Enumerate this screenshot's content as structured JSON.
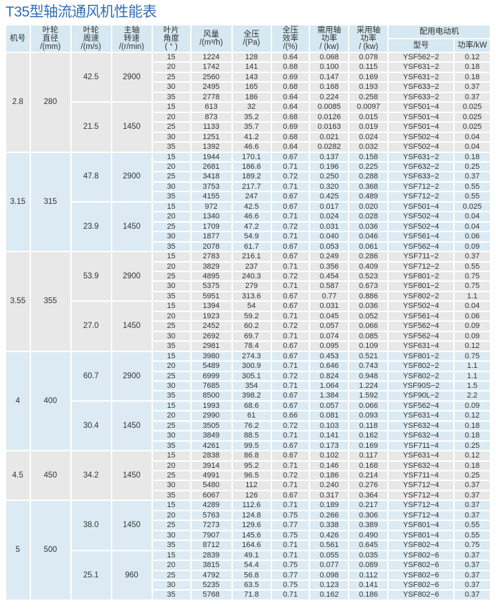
{
  "title": "T35型轴流通风机性能表",
  "headers": {
    "machine_no": "机号",
    "impeller_diameter": [
      "叶轮",
      "直径",
      "/(mm)"
    ],
    "impeller_speed": [
      "叶轮",
      "周速",
      "/(m/s)"
    ],
    "shaft_speed": [
      "主轴",
      "转速",
      "/(r/min)"
    ],
    "blade_angle": [
      "叶片",
      "角度",
      "( ° )"
    ],
    "airflow": [
      "风量",
      "/(m³/h)"
    ],
    "total_pressure": [
      "全压",
      "/(Pa)"
    ],
    "efficiency": [
      "全压",
      "效率",
      "/(%)"
    ],
    "required_power": [
      "需用轴",
      "功率",
      "/ (kw)"
    ],
    "adopted_power": [
      "采用轴",
      "功率",
      "/ (kw)"
    ],
    "motor": "配用电动机",
    "motor_model": "型号",
    "motor_power": "功率/kW"
  },
  "colors": {
    "title": "#2f6db3",
    "header_bg": "#d6e8f1",
    "grey_group": "#e8e8e8",
    "blue_group": "#dcebf3"
  },
  "groups": [
    {
      "machine": "2.8",
      "diameter": "280",
      "subgroups": [
        {
          "speed": "42.5",
          "rpm": "2900",
          "rows": [
            [
              "15",
              "1224",
              "128",
              "0.64",
              "0.068",
              "0.078",
              "YSF562−2",
              "0.12"
            ],
            [
              "20",
              "1742",
              "141",
              "0.68",
              "0.100",
              "0.115",
              "YSF631−2",
              "0.18"
            ],
            [
              "25",
              "2560",
              "143",
              "0.69",
              "0.147",
              "0.169",
              "YSF631−2",
              "0.18"
            ],
            [
              "30",
              "2495",
              "165",
              "0.68",
              "0.168",
              "0.193",
              "YSF633−2",
              "0.37"
            ],
            [
              "35",
              "2778",
              "186",
              "0.64",
              "0.224",
              "0.258",
              "YSF633−2",
              "0.37"
            ]
          ]
        },
        {
          "speed": "21.5",
          "rpm": "1450",
          "rows": [
            [
              "15",
              "613",
              "32",
              "0.64",
              "0.0085",
              "0.0097",
              "YSF501−4",
              "0.025"
            ],
            [
              "20",
              "873",
              "35.2",
              "0.68",
              "0.0126",
              "0.015",
              "YSF501−4",
              "0.025"
            ],
            [
              "25",
              "1133",
              "35.7",
              "0.69",
              "0.0163",
              "0.019",
              "YSF501−4",
              "0.025"
            ],
            [
              "30",
              "1251",
              "41.2",
              "0.68",
              "0.021",
              "0.024",
              "YSF502−4",
              "0.04"
            ],
            [
              "35",
              "1392",
              "46.6",
              "0.64",
              "0.0282",
              "0.032",
              "YSF502−4",
              "0.04"
            ]
          ]
        }
      ]
    },
    {
      "machine": "3.15",
      "diameter": "315",
      "subgroups": [
        {
          "speed": "47.8",
          "rpm": "2900",
          "rows": [
            [
              "15",
              "1944",
              "170.1",
              "0.67",
              "0.137",
              "0.158",
              "YSF631−2",
              "0.18"
            ],
            [
              "20",
              "2681",
              "186.6",
              "0.71",
              "0.196",
              "0.225",
              "YSF632−2",
              "0.25"
            ],
            [
              "25",
              "3418",
              "189.2",
              "0.72",
              "0.250",
              "0.288",
              "YSF633−2",
              "0.37"
            ],
            [
              "30",
              "3753",
              "217.7",
              "0.71",
              "0.320",
              "0.368",
              "YSF712−2",
              "0.55"
            ],
            [
              "35",
              "4155",
              "247",
              "0.67",
              "0.425",
              "0.489",
              "YSF712−2",
              "0.55"
            ]
          ]
        },
        {
          "speed": "23.9",
          "rpm": "1450",
          "rows": [
            [
              "15",
              "972",
              "42.5",
              "0.67",
              "0.017",
              "0.020",
              "YSF501−4",
              "0.025"
            ],
            [
              "20",
              "1340",
              "46.6",
              "0.71",
              "0.024",
              "0.028",
              "YSF502−4",
              "0.04"
            ],
            [
              "25",
              "1709",
              "47.2",
              "0.72",
              "0.031",
              "0.036",
              "YSF502−4",
              "0.04"
            ],
            [
              "30",
              "1877",
              "54.9",
              "0.71",
              "0.040",
              "0.046",
              "YSF561−4",
              "0.06"
            ],
            [
              "35",
              "2078",
              "61.7",
              "0.67",
              "0.053",
              "0.061",
              "YSF562−4",
              "0.09"
            ]
          ]
        }
      ]
    },
    {
      "machine": "3.55",
      "diameter": "355",
      "subgroups": [
        {
          "speed": "53.9",
          "rpm": "2900",
          "rows": [
            [
              "15",
              "2783",
              "216.1",
              "0.67",
              "0.249",
              "0.286",
              "YSF711−2",
              "0.37"
            ],
            [
              "20",
              "3829",
              "237",
              "0.71",
              "0.356",
              "0.409",
              "YSF712−2",
              "0.55"
            ],
            [
              "25",
              "4895",
              "240.3",
              "0.72",
              "0.454",
              "0.523",
              "YSF801−2",
              "0.75"
            ],
            [
              "30",
              "5375",
              "279",
              "0.71",
              "0.587",
              "0.673",
              "YSF801−2",
              "0.75"
            ],
            [
              "35",
              "5951",
              "313.6",
              "0.67",
              "0.77",
              "0.886",
              "YSF802−2",
              "1.1"
            ]
          ]
        },
        {
          "speed": "27.0",
          "rpm": "1450",
          "rows": [
            [
              "15",
              "1394",
              "54",
              "0.67",
              "0.031",
              "0.036",
              "YSF502−4",
              "0.04"
            ],
            [
              "20",
              "1923",
              "59.2",
              "0.71",
              "0.045",
              "0.052",
              "YSF561−4",
              "0.06"
            ],
            [
              "25",
              "2452",
              "60.2",
              "0.72",
              "0.057",
              "0.066",
              "YSF562−4",
              "0.09"
            ],
            [
              "30",
              "2692",
              "69.7",
              "0.71",
              "0.074",
              "0.085",
              "YSF562−4",
              "0.09"
            ],
            [
              "35",
              "2981",
              "78.4",
              "0.67",
              "0.095",
              "0.109",
              "YSF631−4",
              "0.12"
            ]
          ]
        }
      ]
    },
    {
      "machine": "4",
      "diameter": "400",
      "subgroups": [
        {
          "speed": "60.7",
          "rpm": "2900",
          "rows": [
            [
              "15",
              "3980",
              "274.3",
              "0.67",
              "0.453",
              "0.521",
              "YSF801−2",
              "0.75"
            ],
            [
              "20",
              "5489",
              "300.9",
              "0.71",
              "0.646",
              "0.743",
              "YSF802−2",
              "1.1"
            ],
            [
              "25",
              "6999",
              "305.1",
              "0.72",
              "0.824",
              "0.948",
              "YSF802−2",
              "1.1"
            ],
            [
              "30",
              "7685",
              "354",
              "0.71",
              "1.064",
              "1.224",
              "YSF90S−2",
              "1.5"
            ],
            [
              "35",
              "8500",
              "398.2",
              "0.67",
              "1.384",
              "1.592",
              "YSF90L−2",
              "2.2"
            ]
          ]
        },
        {
          "speed": "30.4",
          "rpm": "1450",
          "rows": [
            [
              "15",
              "1993",
              "68.6",
              "0.67",
              "0.057",
              "0.066",
              "YSF562−4",
              "0.09"
            ],
            [
              "20",
              "2990",
              "61",
              "0.66",
              "0.081",
              "0.093",
              "YSF631−4",
              "0.12"
            ],
            [
              "25",
              "3505",
              "76.2",
              "0.72",
              "0.103",
              "0.118",
              "YSF632−4",
              "0.18"
            ],
            [
              "30",
              "3849",
              "88.5",
              "0.71",
              "0.141",
              "0.162",
              "YSF632−4",
              "0.18"
            ],
            [
              "35",
              "4261",
              "99.5",
              "0.67",
              "0.173",
              "0.169",
              "YSF711−4",
              "0.25"
            ]
          ]
        }
      ]
    },
    {
      "machine": "4.5",
      "diameter": "450",
      "subgroups": [
        {
          "speed": "34.2",
          "rpm": "1450",
          "rows": [
            [
              "15",
              "2838",
              "86.8",
              "0.67",
              "0.102",
              "0.117",
              "YSF631−4",
              "0.12"
            ],
            [
              "20",
              "3914",
              "95.2",
              "0.71",
              "0.146",
              "0.168",
              "YSF632−4",
              "0.18"
            ],
            [
              "25",
              "4991",
              "96.5",
              "0.72",
              "0.186",
              "0.214",
              "YSF711−4",
              "0.25"
            ],
            [
              "30",
              "5480",
              "112",
              "0.71",
              "0.240",
              "0.276",
              "YSF712−4",
              "0.37"
            ],
            [
              "35",
              "6067",
              "126",
              "0.67",
              "0.317",
              "0.364",
              "YSF712−4",
              "0.37"
            ]
          ]
        }
      ]
    },
    {
      "machine": "5",
      "diameter": "500",
      "subgroups": [
        {
          "speed": "38.0",
          "rpm": "1450",
          "rows": [
            [
              "15",
              "4289",
              "112.6",
              "0.71",
              "0.189",
              "0.217",
              "YSF712−4",
              "0.37"
            ],
            [
              "20",
              "5763",
              "124.8",
              "0.75",
              "0.266",
              "0.306",
              "YSF712−4",
              "0.37"
            ],
            [
              "25",
              "7273",
              "129.6",
              "0.77",
              "0.338",
              "0.389",
              "YSF801−4",
              "0.55"
            ],
            [
              "30",
              "7907",
              "145.6",
              "0.75",
              "0.426",
              "0.490",
              "YSF801−4",
              "0.55"
            ],
            [
              "35",
              "8712",
              "164.6",
              "0.71",
              "0.561",
              "0.645",
              "YSF802−4",
              "0.75"
            ]
          ]
        },
        {
          "speed": "25.1",
          "rpm": "960",
          "rows": [
            [
              "15",
              "2839",
              "49.1",
              "0.71",
              "0.055",
              "0.035",
              "YSF802−6",
              "0.37"
            ],
            [
              "20",
              "3815",
              "54.4",
              "0.75",
              "0.077",
              "0.089",
              "YSF802−6",
              "0.37"
            ],
            [
              "25",
              "4792",
              "56.8",
              "0.77",
              "0.098",
              "0.112",
              "YSF802−6",
              "0.37"
            ],
            [
              "30",
              "5235",
              "63.5",
              "0.75",
              "0.123",
              "0.141",
              "YSF802−6",
              "0.37"
            ],
            [
              "35",
              "5768",
              "71.8",
              "0.71",
              "0.162",
              "0.186",
              "YSF802−6",
              "0.37"
            ]
          ]
        }
      ]
    }
  ]
}
